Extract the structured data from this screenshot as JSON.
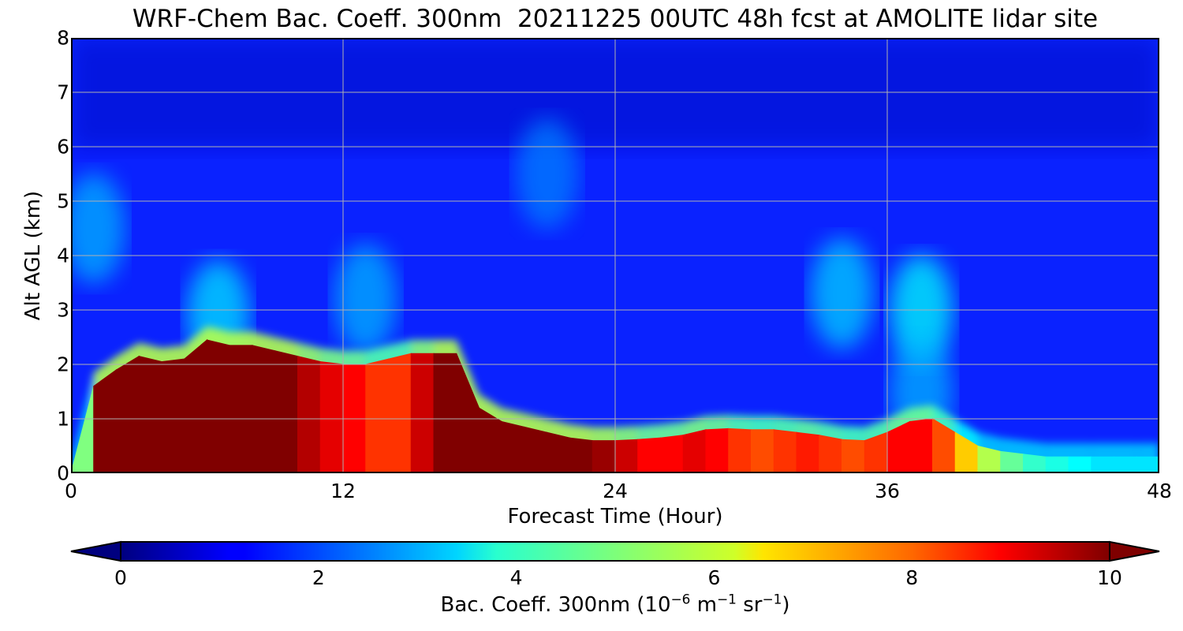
{
  "chart_data": {
    "type": "heatmap",
    "title": "WRF-Chem Bac. Coeff. 300nm  20211225 00UTC 48h fcst at AMOLITE lidar site",
    "xlabel": "Forecast Time (Hour)",
    "ylabel": "Alt AGL (km)",
    "xlim": [
      0,
      48
    ],
    "ylim": [
      0,
      8
    ],
    "xticks": [
      "0",
      "12",
      "24",
      "36",
      "48"
    ],
    "yticks": [
      "0",
      "1",
      "2",
      "3",
      "4",
      "5",
      "6",
      "7",
      "8"
    ],
    "grid": true,
    "colormap": "jet",
    "colorbar": {
      "orientation": "horizontal",
      "extend": "both",
      "range": [
        0,
        10
      ],
      "ticks": [
        "0",
        "2",
        "4",
        "6",
        "8",
        "10"
      ],
      "label_main": "Bac. Coeff. 300nm  (10",
      "label_exp1": "−6",
      "label_mid": " m",
      "label_exp2": "−1",
      "label_mid2": " sr",
      "label_exp3": "−1",
      "label_end": ")"
    },
    "x": [
      0,
      1,
      2,
      3,
      4,
      5,
      6,
      7,
      8,
      9,
      10,
      11,
      12,
      13,
      14,
      15,
      16,
      17,
      18,
      19,
      20,
      21,
      22,
      23,
      24,
      25,
      26,
      27,
      28,
      29,
      30,
      31,
      32,
      33,
      34,
      35,
      36,
      37,
      38,
      39,
      40,
      41,
      42,
      43,
      44,
      45,
      46,
      47,
      48
    ],
    "boundary_layer_top_km": [
      0.0,
      1.6,
      1.9,
      2.15,
      2.05,
      2.1,
      2.45,
      2.35,
      2.35,
      2.25,
      2.15,
      2.05,
      2.0,
      2.0,
      2.1,
      2.2,
      2.2,
      2.2,
      1.2,
      0.95,
      0.85,
      0.75,
      0.65,
      0.6,
      0.6,
      0.62,
      0.65,
      0.7,
      0.8,
      0.82,
      0.8,
      0.8,
      0.75,
      0.7,
      0.62,
      0.6,
      0.75,
      0.95,
      1.0,
      0.75,
      0.5,
      0.4,
      0.35,
      0.3,
      0.3,
      0.3,
      0.3,
      0.3,
      0.3
    ],
    "boundary_layer_value": [
      0,
      10,
      10,
      10,
      10,
      10,
      10,
      10,
      10,
      10,
      10,
      9,
      9,
      8.5,
      8,
      8.5,
      10,
      10,
      10,
      10,
      10,
      10,
      10,
      10,
      9.5,
      9,
      8.5,
      9,
      9,
      8.5,
      8,
      8,
      8.5,
      8.5,
      8,
      8,
      8.5,
      9,
      8.5,
      7.5,
      6,
      5,
      4.5,
      4,
      4,
      3.5,
      3.5,
      3.5,
      3.5
    ],
    "elevated_features": [
      {
        "x": 1,
        "y": 4.5,
        "value": 3.0
      },
      {
        "x": 6.5,
        "y": 2.9,
        "value": 3.5
      },
      {
        "x": 13,
        "y": 3.2,
        "value": 3.0
      },
      {
        "x": 21,
        "y": 5.5,
        "value": 2.5
      },
      {
        "x": 34,
        "y": 3.3,
        "value": 3.3
      },
      {
        "x": 37.5,
        "y": 3.0,
        "value": 3.8
      },
      {
        "x": 37.5,
        "y": 1.5,
        "value": 3.0
      }
    ]
  }
}
